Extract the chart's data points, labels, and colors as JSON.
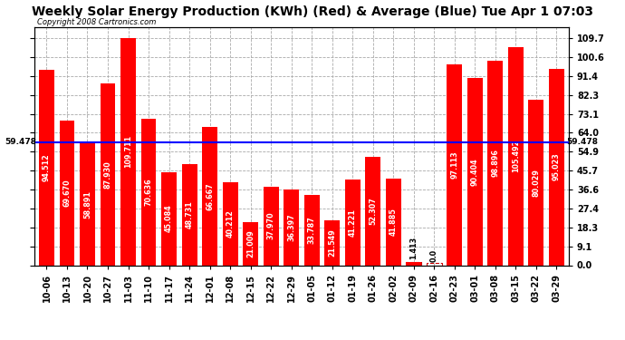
{
  "title": "Weekly Solar Energy Production (KWh) (Red) & Average (Blue) Tue Apr 1 07:03",
  "copyright": "Copyright 2008 Cartronics.com",
  "categories": [
    "10-06",
    "10-13",
    "10-20",
    "10-27",
    "11-03",
    "11-10",
    "11-17",
    "11-24",
    "12-01",
    "12-08",
    "12-15",
    "12-22",
    "12-29",
    "01-05",
    "01-12",
    "01-19",
    "01-26",
    "02-02",
    "02-09",
    "02-16",
    "02-23",
    "03-01",
    "03-08",
    "03-15",
    "03-22",
    "03-29"
  ],
  "values": [
    94.512,
    69.67,
    58.891,
    87.93,
    109.711,
    70.636,
    45.084,
    48.731,
    66.667,
    40.212,
    21.009,
    37.97,
    36.397,
    33.787,
    21.549,
    41.221,
    52.307,
    41.885,
    1.413,
    0.0,
    97.113,
    90.404,
    98.896,
    105.492,
    80.029,
    95.023
  ],
  "average": 59.478,
  "bar_color": "#ff0000",
  "avg_line_color": "#0000ff",
  "background_color": "#ffffff",
  "plot_bg_color": "#ffffff",
  "grid_color": "#aaaaaa",
  "yticks": [
    0.0,
    9.1,
    18.3,
    27.4,
    36.6,
    45.7,
    54.9,
    64.0,
    73.1,
    82.3,
    91.4,
    100.6,
    109.7
  ],
  "ylim": [
    0.0,
    115.0
  ],
  "title_fontsize": 10,
  "bar_label_fontsize": 5.8,
  "tick_fontsize": 7,
  "copyright_fontsize": 6,
  "avg_label": "59.478",
  "dashed_bar_indices": [
    18,
    19
  ]
}
